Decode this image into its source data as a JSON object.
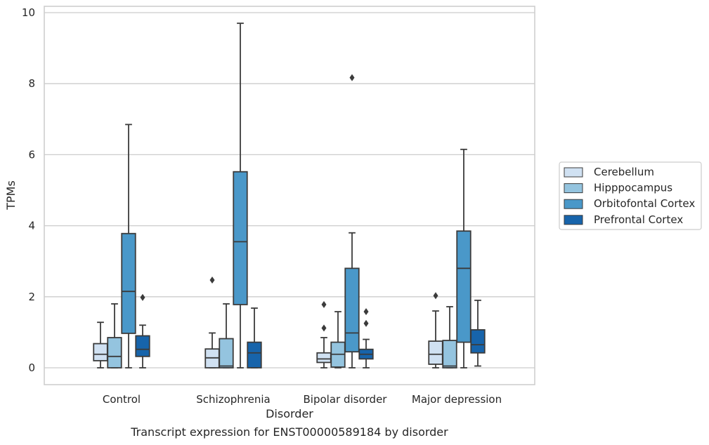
{
  "caption": "Transcript expression for ENST00000589184 by disorder",
  "chart_data": {
    "type": "box",
    "xlabel": "Disorder",
    "ylabel": "TPMs",
    "ylim": [
      -0.45,
      10.2
    ],
    "yticks": [
      0,
      2,
      4,
      6,
      8,
      10
    ],
    "grid": true,
    "legend_placement": "right",
    "categories": [
      "Control",
      "Schizophrenia",
      "Bipolar disorder",
      "Major depression"
    ],
    "series": [
      {
        "name": "Cerebellum",
        "color": "#d0e1f2",
        "boxes": [
          {
            "whislo": 0.0,
            "q1": 0.2,
            "med": 0.38,
            "q3": 0.68,
            "whishi": 1.28,
            "fliers": []
          },
          {
            "whislo": 0.0,
            "q1": 0.0,
            "med": 0.28,
            "q3": 0.53,
            "whishi": 0.98,
            "fliers": [
              2.47
            ]
          },
          {
            "whislo": 0.0,
            "q1": 0.15,
            "med": 0.25,
            "q3": 0.42,
            "whishi": 0.85,
            "fliers": [
              1.12,
              1.78
            ]
          },
          {
            "whislo": 0.0,
            "q1": 0.1,
            "med": 0.38,
            "q3": 0.75,
            "whishi": 1.6,
            "fliers": [
              2.03
            ]
          }
        ]
      },
      {
        "name": "Hipppocampus",
        "color": "#94c4df",
        "boxes": [
          {
            "whislo": 0.0,
            "q1": 0.0,
            "med": 0.32,
            "q3": 0.85,
            "whishi": 1.8,
            "fliers": []
          },
          {
            "whislo": 0.0,
            "q1": 0.0,
            "med": 0.05,
            "q3": 0.82,
            "whishi": 1.8,
            "fliers": []
          },
          {
            "whislo": 0.0,
            "q1": 0.02,
            "med": 0.38,
            "q3": 0.72,
            "whishi": 1.58,
            "fliers": []
          },
          {
            "whislo": 0.0,
            "q1": 0.0,
            "med": 0.05,
            "q3": 0.77,
            "whishi": 1.72,
            "fliers": []
          }
        ]
      },
      {
        "name": "Orbitofontal Cortex",
        "color": "#4a98c9",
        "boxes": [
          {
            "whislo": 0.0,
            "q1": 0.97,
            "med": 2.15,
            "q3": 3.78,
            "whishi": 6.85,
            "fliers": []
          },
          {
            "whislo": 0.0,
            "q1": 1.78,
            "med": 3.55,
            "q3": 5.52,
            "whishi": 9.7,
            "fliers": []
          },
          {
            "whislo": 0.0,
            "q1": 0.45,
            "med": 0.98,
            "q3": 2.8,
            "whishi": 3.8,
            "fliers": [
              8.17
            ]
          },
          {
            "whislo": 0.0,
            "q1": 0.72,
            "med": 2.8,
            "q3": 3.85,
            "whishi": 6.15,
            "fliers": []
          }
        ]
      },
      {
        "name": "Prefrontal Cortex",
        "color": "#1764ab",
        "boxes": [
          {
            "whislo": 0.0,
            "q1": 0.32,
            "med": 0.52,
            "q3": 0.9,
            "whishi": 1.2,
            "fliers": [
              1.98
            ]
          },
          {
            "whislo": 0.0,
            "q1": 0.0,
            "med": 0.42,
            "q3": 0.72,
            "whishi": 1.68,
            "fliers": []
          },
          {
            "whislo": 0.0,
            "q1": 0.25,
            "med": 0.38,
            "q3": 0.52,
            "whishi": 0.8,
            "fliers": [
              1.25,
              1.58
            ]
          },
          {
            "whislo": 0.05,
            "q1": 0.42,
            "med": 0.65,
            "q3": 1.07,
            "whishi": 1.9,
            "fliers": []
          }
        ]
      }
    ]
  }
}
